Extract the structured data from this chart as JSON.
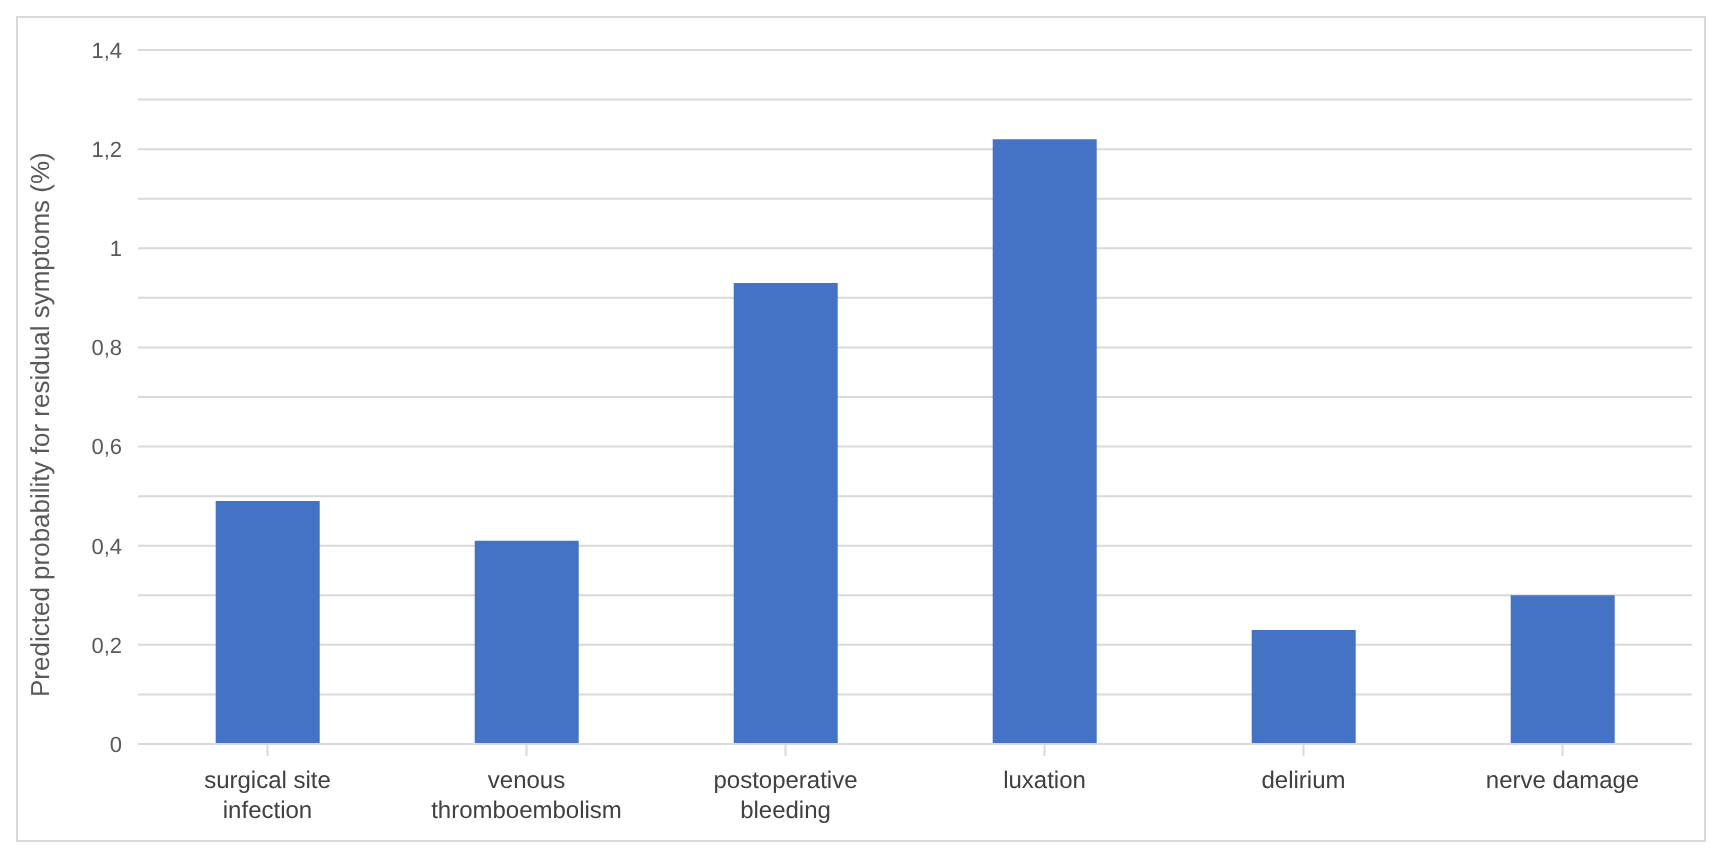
{
  "chart_data": {
    "type": "bar",
    "ylabel": "Predicted probability for residual symptoms (%)",
    "categories": [
      "surgical site infection",
      "venous thromboembolism",
      "postoperative bleeding",
      "luxation",
      "delirium",
      "nerve damage"
    ],
    "values": [
      0.49,
      0.41,
      0.93,
      1.22,
      0.23,
      0.3
    ],
    "color": "#4472c4",
    "ylim": [
      0,
      1.4
    ],
    "yticks": [
      {
        "value": 0,
        "label": "0"
      },
      {
        "value": 0.1,
        "label": null
      },
      {
        "value": 0.2,
        "label": "0,2"
      },
      {
        "value": 0.3,
        "label": null
      },
      {
        "value": 0.4,
        "label": "0,4"
      },
      {
        "value": 0.5,
        "label": null
      },
      {
        "value": 0.6,
        "label": "0,6"
      },
      {
        "value": 0.7,
        "label": null
      },
      {
        "value": 0.8,
        "label": "0,8"
      },
      {
        "value": 0.9,
        "label": null
      },
      {
        "value": 1,
        "label": "1"
      },
      {
        "value": 1.1,
        "label": null
      },
      {
        "value": 1.2,
        "label": "1,2"
      },
      {
        "value": 1.3,
        "label": null
      },
      {
        "value": 1.4,
        "label": "1,4"
      }
    ],
    "grid": "y"
  }
}
